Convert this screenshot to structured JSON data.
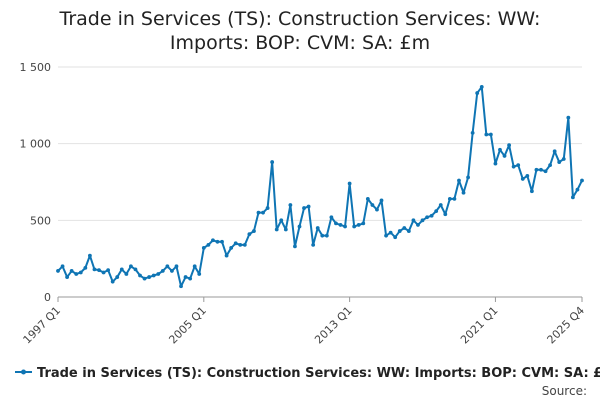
{
  "chart_data": {
    "type": "line",
    "title_lines": [
      "Trade in Services (TS): Construction Services: WW:",
      "Imports: BOP: CVM: SA: £m"
    ],
    "y_ticks": [
      {
        "value": 0,
        "label": "0"
      },
      {
        "value": 500,
        "label": "500"
      },
      {
        "value": 1000,
        "label": "1 000"
      },
      {
        "value": 1500,
        "label": "1 500"
      }
    ],
    "ylim": [
      0,
      1500
    ],
    "x_ticks": [
      {
        "index": 0,
        "label": "1997 Q1"
      },
      {
        "index": 32,
        "label": "2005 Q1"
      },
      {
        "index": 64,
        "label": "2013 Q1"
      },
      {
        "index": 96,
        "label": "2021 Q1"
      },
      {
        "index": 115,
        "label": "2025 Q4"
      }
    ],
    "grid": true,
    "legend_position": "bottom",
    "colors": {
      "series": "#0f75b4"
    },
    "series": [
      {
        "name": "Trade in Services (TS): Construction Services: WW: Imports: BOP: CVM: SA: £m",
        "values": [
          170,
          200,
          130,
          170,
          150,
          160,
          190,
          270,
          180,
          175,
          160,
          175,
          100,
          130,
          180,
          150,
          200,
          180,
          140,
          120,
          130,
          140,
          150,
          170,
          200,
          170,
          200,
          70,
          130,
          120,
          200,
          150,
          320,
          340,
          370,
          360,
          360,
          270,
          320,
          350,
          340,
          340,
          410,
          430,
          550,
          550,
          580,
          880,
          440,
          500,
          440,
          600,
          330,
          460,
          580,
          590,
          340,
          450,
          400,
          400,
          520,
          480,
          470,
          460,
          740,
          460,
          470,
          480,
          640,
          600,
          570,
          630,
          400,
          420,
          390,
          430,
          450,
          430,
          500,
          470,
          500,
          520,
          530,
          560,
          600,
          540,
          640,
          640,
          760,
          680,
          780,
          1070,
          1330,
          1370,
          1060,
          1060,
          870,
          960,
          920,
          990,
          850,
          860,
          770,
          790,
          690,
          830,
          830,
          820,
          860,
          950,
          880,
          900,
          1170,
          650,
          700,
          760
        ]
      }
    ]
  },
  "source_label": "Source:"
}
